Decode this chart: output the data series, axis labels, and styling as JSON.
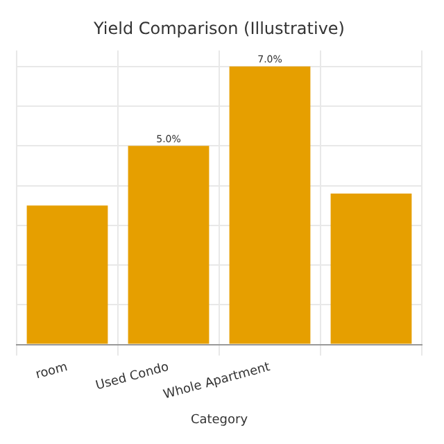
{
  "chart_data": {
    "type": "bar",
    "title": "Yield Comparison (Illustrative)",
    "xlabel": "Category",
    "categories": [
      "room",
      "Used Condo",
      "Whole Apartment",
      null
    ],
    "values": [
      3.5,
      5.0,
      7.0,
      3.8
    ],
    "color": "#e69f00",
    "value_labels": [
      null,
      "5.0%",
      "7.0%",
      null
    ],
    "ylim": [
      0,
      7.4
    ],
    "yticks": [
      0,
      1,
      2,
      3,
      4,
      5,
      6,
      7
    ],
    "tick_labels": "x",
    "grid": true
  }
}
